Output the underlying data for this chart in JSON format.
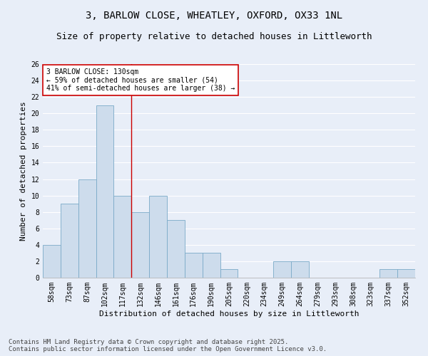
{
  "title1": "3, BARLOW CLOSE, WHEATLEY, OXFORD, OX33 1NL",
  "title2": "Size of property relative to detached houses in Littleworth",
  "xlabel": "Distribution of detached houses by size in Littleworth",
  "ylabel": "Number of detached properties",
  "categories": [
    "58sqm",
    "73sqm",
    "87sqm",
    "102sqm",
    "117sqm",
    "132sqm",
    "146sqm",
    "161sqm",
    "176sqm",
    "190sqm",
    "205sqm",
    "220sqm",
    "234sqm",
    "249sqm",
    "264sqm",
    "279sqm",
    "293sqm",
    "308sqm",
    "323sqm",
    "337sqm",
    "352sqm"
  ],
  "values": [
    4,
    9,
    12,
    21,
    10,
    8,
    10,
    7,
    3,
    3,
    1,
    0,
    0,
    2,
    2,
    0,
    0,
    0,
    0,
    1,
    1
  ],
  "bar_color": "#cddcec",
  "bar_edge_color": "#7aaac8",
  "bar_width": 1.0,
  "ylim": [
    0,
    26
  ],
  "yticks": [
    0,
    2,
    4,
    6,
    8,
    10,
    12,
    14,
    16,
    18,
    20,
    22,
    24,
    26
  ],
  "red_line_x": 4.5,
  "annotation_text": "3 BARLOW CLOSE: 130sqm\n← 59% of detached houses are smaller (54)\n41% of semi-detached houses are larger (38) →",
  "annotation_box_color": "#ffffff",
  "annotation_box_edge_color": "#cc0000",
  "footer1": "Contains HM Land Registry data © Crown copyright and database right 2025.",
  "footer2": "Contains public sector information licensed under the Open Government Licence v3.0.",
  "background_color": "#e8eef8",
  "grid_color": "#ffffff",
  "title1_fontsize": 10,
  "title2_fontsize": 9,
  "xlabel_fontsize": 8,
  "ylabel_fontsize": 8,
  "tick_fontsize": 7,
  "annotation_fontsize": 7,
  "footer_fontsize": 6.5
}
